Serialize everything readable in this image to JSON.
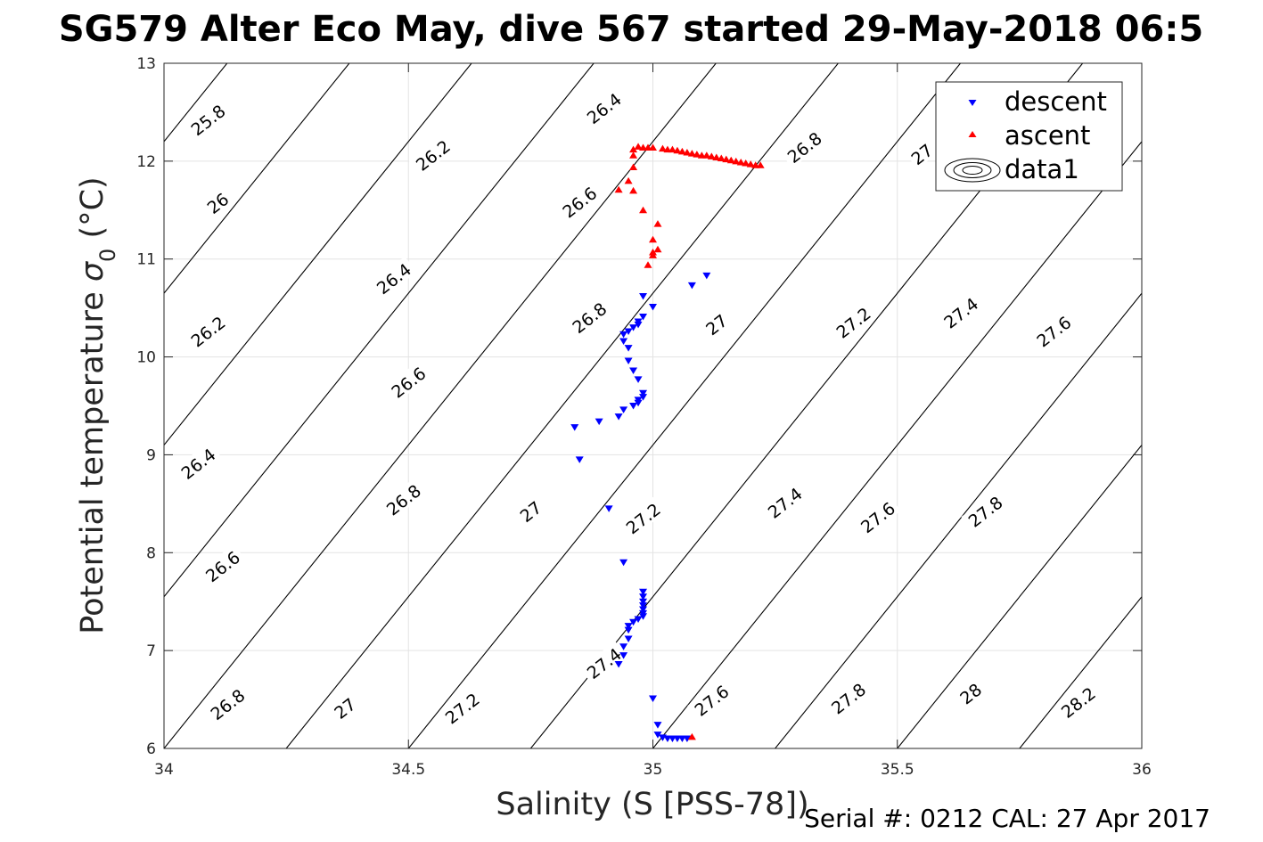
{
  "chart_data": {
    "type": "scatter",
    "title": "SG579 Alter Eco May, dive 567 started 29-May-2018 06:5",
    "xlabel": "Salinity (S [PSS-78])",
    "ylabel": "Potential temperature σ₀ (°C)",
    "ylabel_main": "Potential temperature ",
    "ylabel_sigma": "σ",
    "ylabel_sub": "0",
    "ylabel_unit": " (°C)",
    "xlim": [
      34,
      36
    ],
    "ylim": [
      6,
      13
    ],
    "xticks": [
      "34",
      "34.5",
      "35",
      "35.5",
      "36"
    ],
    "yticks": [
      "6",
      "7",
      "8",
      "9",
      "10",
      "11",
      "12",
      "13"
    ],
    "grid": true,
    "legend_position": "top-right",
    "legend": [
      "descent",
      "ascent",
      "data1"
    ],
    "contours": {
      "color": "#000000",
      "label_positions": [
        {
          "text": "25.8",
          "s": 34.09,
          "t": 12.42
        },
        {
          "text": "26",
          "s": 34.11,
          "t": 11.57
        },
        {
          "text": "26.2",
          "s": 34.09,
          "t": 10.26
        },
        {
          "text": "26.4",
          "s": 34.07,
          "t": 8.91
        },
        {
          "text": "26.6",
          "s": 34.12,
          "t": 7.86
        },
        {
          "text": "26.8",
          "s": 34.13,
          "t": 6.45
        },
        {
          "text": "27",
          "s": 34.37,
          "t": 6.41
        },
        {
          "text": "27.2",
          "s": 34.61,
          "t": 6.41
        },
        {
          "text": "26.2",
          "s": 34.55,
          "t": 12.06
        },
        {
          "text": "26.4",
          "s": 34.47,
          "t": 10.8
        },
        {
          "text": "26.6",
          "s": 34.5,
          "t": 9.74
        },
        {
          "text": "26.8",
          "s": 34.49,
          "t": 8.54
        },
        {
          "text": "27",
          "s": 34.75,
          "t": 8.42
        },
        {
          "text": "27.2",
          "s": 34.98,
          "t": 8.35
        },
        {
          "text": "27.4",
          "s": 34.9,
          "t": 6.87
        },
        {
          "text": "27.6",
          "s": 35.12,
          "t": 6.49
        },
        {
          "text": "26.4",
          "s": 34.9,
          "t": 12.54
        },
        {
          "text": "26.6",
          "s": 34.85,
          "t": 11.58
        },
        {
          "text": "26.8",
          "s": 34.87,
          "t": 10.4
        },
        {
          "text": "27",
          "s": 35.13,
          "t": 10.33
        },
        {
          "text": "27.4",
          "s": 35.27,
          "t": 8.51
        },
        {
          "text": "27.6",
          "s": 35.46,
          "t": 8.36
        },
        {
          "text": "27.8",
          "s": 35.4,
          "t": 6.51
        },
        {
          "text": "26.8",
          "s": 35.31,
          "t": 12.14
        },
        {
          "text": "27.2",
          "s": 35.41,
          "t": 10.35
        },
        {
          "text": "27.4",
          "s": 35.63,
          "t": 10.45
        },
        {
          "text": "27.6",
          "s": 35.82,
          "t": 10.26
        },
        {
          "text": "27.8",
          "s": 35.68,
          "t": 8.42
        },
        {
          "text": "28",
          "s": 35.65,
          "t": 6.56
        },
        {
          "text": "28.2",
          "s": 35.87,
          "t": 6.47
        },
        {
          "text": "27",
          "s": 35.55,
          "t": 12.07
        }
      ]
    },
    "series": [
      {
        "name": "descent",
        "marker": "triangle-down",
        "color": "#0000ff",
        "points": [
          [
            35.11,
            10.83
          ],
          [
            35.08,
            10.73
          ],
          [
            34.98,
            10.62
          ],
          [
            35.0,
            10.51
          ],
          [
            34.98,
            10.41
          ],
          [
            34.97,
            10.36
          ],
          [
            34.97,
            10.33
          ],
          [
            34.96,
            10.3
          ],
          [
            34.95,
            10.26
          ],
          [
            34.94,
            10.23
          ],
          [
            34.94,
            10.16
          ],
          [
            34.95,
            10.09
          ],
          [
            34.95,
            9.96
          ],
          [
            34.96,
            9.86
          ],
          [
            34.97,
            9.77
          ],
          [
            34.98,
            9.63
          ],
          [
            34.98,
            9.59
          ],
          [
            34.97,
            9.56
          ],
          [
            34.97,
            9.53
          ],
          [
            34.96,
            9.5
          ],
          [
            34.94,
            9.46
          ],
          [
            34.93,
            9.39
          ],
          [
            34.89,
            9.34
          ],
          [
            34.84,
            9.28
          ],
          [
            34.85,
            8.95
          ],
          [
            34.91,
            8.45
          ],
          [
            34.94,
            7.9
          ],
          [
            34.98,
            7.6
          ],
          [
            34.98,
            7.55
          ],
          [
            34.98,
            7.5
          ],
          [
            34.98,
            7.46
          ],
          [
            34.98,
            7.42
          ],
          [
            34.98,
            7.38
          ],
          [
            34.98,
            7.35
          ],
          [
            34.97,
            7.32
          ],
          [
            34.96,
            7.29
          ],
          [
            34.95,
            7.25
          ],
          [
            34.95,
            7.21
          ],
          [
            34.95,
            7.12
          ],
          [
            34.94,
            7.04
          ],
          [
            34.94,
            6.95
          ],
          [
            34.93,
            6.86
          ],
          [
            35.0,
            6.51
          ],
          [
            35.01,
            6.24
          ],
          [
            35.01,
            6.14
          ],
          [
            35.02,
            6.11
          ],
          [
            35.03,
            6.1
          ],
          [
            35.04,
            6.1
          ],
          [
            35.05,
            6.1
          ],
          [
            35.06,
            6.1
          ],
          [
            35.07,
            6.1
          ]
        ]
      },
      {
        "name": "ascent",
        "marker": "triangle-up",
        "color": "#ff0000",
        "points": [
          [
            35.08,
            6.12
          ],
          [
            34.99,
            10.94
          ],
          [
            35.0,
            11.04
          ],
          [
            35.0,
            11.07
          ],
          [
            35.01,
            11.1
          ],
          [
            35.0,
            11.2
          ],
          [
            35.01,
            11.36
          ],
          [
            34.98,
            11.5
          ],
          [
            34.96,
            11.7
          ],
          [
            34.93,
            11.71
          ],
          [
            34.95,
            11.8
          ],
          [
            34.96,
            11.94
          ],
          [
            34.96,
            12.06
          ],
          [
            34.96,
            12.12
          ],
          [
            34.97,
            12.15
          ],
          [
            34.98,
            12.14
          ],
          [
            34.99,
            12.14
          ],
          [
            35.0,
            12.14
          ],
          [
            35.02,
            12.13
          ],
          [
            35.03,
            12.12
          ],
          [
            35.04,
            12.12
          ],
          [
            35.05,
            12.11
          ],
          [
            35.06,
            12.1
          ],
          [
            35.07,
            12.09
          ],
          [
            35.08,
            12.08
          ],
          [
            35.09,
            12.07
          ],
          [
            35.1,
            12.06
          ],
          [
            35.11,
            12.06
          ],
          [
            35.12,
            12.05
          ],
          [
            35.13,
            12.04
          ],
          [
            35.14,
            12.03
          ],
          [
            35.15,
            12.02
          ],
          [
            35.16,
            12.01
          ],
          [
            35.17,
            12.0
          ],
          [
            35.18,
            11.99
          ],
          [
            35.19,
            11.98
          ],
          [
            35.2,
            11.97
          ],
          [
            35.21,
            11.96
          ],
          [
            35.22,
            11.96
          ]
        ]
      }
    ],
    "footer": "Serial #: 0212  CAL: 27 Apr 2017"
  }
}
